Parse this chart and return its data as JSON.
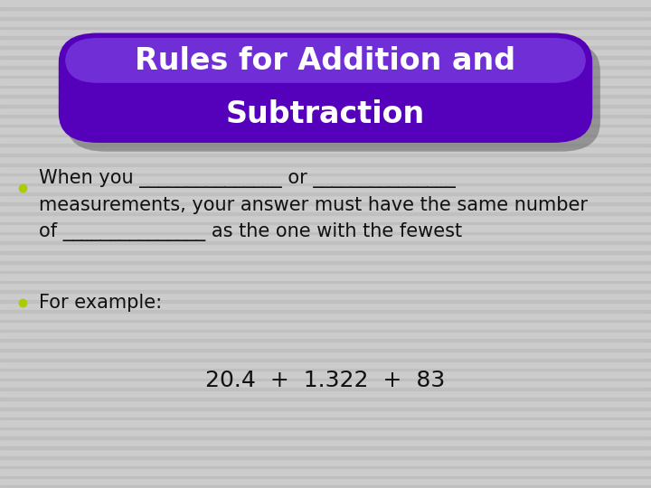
{
  "title_line1": "Rules for Addition and",
  "title_line2": "Subtraction",
  "title_color": "#ffffff",
  "bg_color": "#cccccc",
  "stripe_color": "#bbbbbb",
  "badge_color": "#5500bb",
  "badge_edge_color": "#7733dd",
  "badge_highlight": "#8855ee",
  "shadow_color": "#666666",
  "bullet_color": "#aacc00",
  "bullet1_line1": "When you _______________ or _______________",
  "bullet1_line2": "measurements, your answer must have the same number",
  "bullet1_line3": "of _______________ as the one with the fewest",
  "bullet2": "For example:",
  "example": "20.4  +  1.322  +  83",
  "text_color": "#111111",
  "title_fontsize": 24,
  "body_fontsize": 15,
  "example_fontsize": 18
}
